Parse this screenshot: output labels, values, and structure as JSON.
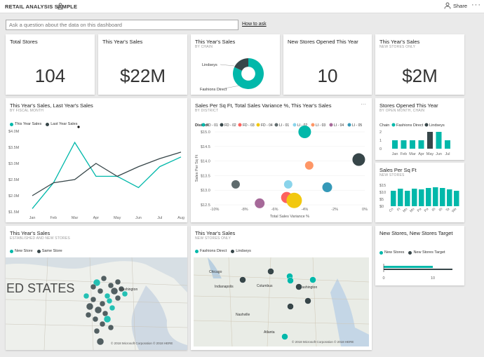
{
  "header": {
    "title": "RETAIL ANALYSIS SAMPLE",
    "share_label": "Share",
    "more_label": "···"
  },
  "qa": {
    "placeholder": "Ask a question about the data on this dashboard",
    "how_to": "How to ask"
  },
  "colors": {
    "teal": "#01b8aa",
    "dark": "#374649",
    "grey": "#808080"
  },
  "tiles": {
    "total_stores": {
      "title": "Total Stores",
      "value": "104"
    },
    "this_year_sales": {
      "title": "This Year's Sales",
      "value": "$22M"
    },
    "sales_by_chain": {
      "title": "This Year's Sales",
      "subtitle": "BY CHAIN",
      "labels": [
        "Lindseys",
        "Fashions Direct"
      ]
    },
    "new_stores_opened": {
      "title": "New Stores Opened This Year",
      "value": "10"
    },
    "new_stores_sales": {
      "title": "This Year's Sales",
      "subtitle": "NEW STORES ONLY",
      "value": "$2M"
    },
    "line_chart": {
      "title": "This Year's Sales, Last Year's Sales",
      "subtitle": "BY FISCAL MONTH"
    },
    "scatter": {
      "title": "Sales Per Sq Ft, Total Sales Variance %, This Year's Sales",
      "subtitle": "BY DISTRICT",
      "more": "···",
      "legend_title": "District"
    },
    "stores_opened": {
      "title": "Stores Opened This Year",
      "subtitle": "BY OPEN MONTH, CHAIN",
      "legend_title": "Chain"
    },
    "sales_sqft": {
      "title": "Sales Per Sq Ft",
      "subtitle": "NEW STORES"
    },
    "map1": {
      "title": "This Year's Sales",
      "subtitle": "ESTABLISHED AND NEW STORES",
      "legend": [
        "New Store",
        "Same Store"
      ],
      "overlay": "ED STATES",
      "city": "Washington",
      "copyright": "© 2018 Microsoft Corporation  © 2018 HERE"
    },
    "map2": {
      "title": "This Year's Sales",
      "subtitle": "NEW STORES ONLY",
      "legend": [
        "Fashions Direct",
        "Lindseys"
      ],
      "cities": [
        "Chicago",
        "Indianapolis",
        "Columbus",
        "Washington",
        "Nashville",
        "Atlanta"
      ],
      "copyright": "© 2018 Microsoft Corporation  © 2018 HERE"
    },
    "target": {
      "title": "New Stores, New Stores Target",
      "legend": [
        "New Stores",
        "New Stores Target"
      ],
      "ticks": [
        "0",
        "10"
      ]
    }
  },
  "chart_data": [
    {
      "type": "pie",
      "name": "This Year's Sales by Chain",
      "categories": [
        "Fashions Direct",
        "Lindseys"
      ],
      "values": [
        82,
        18
      ],
      "colors": [
        "#01b8aa",
        "#374649"
      ]
    },
    {
      "type": "line",
      "title": "This Year's Sales, Last Year's Sales",
      "categories": [
        "Jan",
        "Feb",
        "Mar",
        "Apr",
        "May",
        "Jun",
        "Jul",
        "Aug"
      ],
      "series": [
        {
          "name": "This Year Sales",
          "color": "#01b8aa",
          "values": [
            1.6,
            2.4,
            3.65,
            2.6,
            2.6,
            2.25,
            2.9,
            3.2
          ]
        },
        {
          "name": "Last Year Sales",
          "color": "#374649",
          "values": [
            2.0,
            2.4,
            2.5,
            3.0,
            2.6,
            2.9,
            3.15,
            3.35
          ]
        }
      ],
      "yticks": [
        "$1.5M",
        "$2.0M",
        "$2.5M",
        "$3.0M",
        "$3.5M",
        "$4.0M"
      ],
      "ylim": [
        1.5,
        4.0
      ]
    },
    {
      "type": "scatter",
      "title": "Sales Per Sq Ft, Total Sales Variance %, This Year's Sales",
      "xlabel": "Total Sales Variance %",
      "ylabel": "Sales Per Sq Ft",
      "xlim": [
        -10,
        0
      ],
      "ylim": [
        12.5,
        15.0
      ],
      "xticks": [
        "-10%",
        "-8%",
        "-6%",
        "-4%",
        "-2%",
        "0%"
      ],
      "yticks": [
        "$12.5",
        "$13.0",
        "$13.5",
        "$14.0",
        "$14.5",
        "$15.0"
      ],
      "legend": [
        {
          "name": "FD - 01",
          "color": "#01b8aa"
        },
        {
          "name": "FD - 02",
          "color": "#374649"
        },
        {
          "name": "FD - 03",
          "color": "#fd625e"
        },
        {
          "name": "FD - 04",
          "color": "#f2c80f"
        },
        {
          "name": "LI - 01",
          "color": "#5f6b6d"
        },
        {
          "name": "LI - 02",
          "color": "#8ad4eb"
        },
        {
          "name": "LI - 03",
          "color": "#fe9666"
        },
        {
          "name": "LI - 04",
          "color": "#a66999"
        },
        {
          "name": "LI - 05",
          "color": "#3599b8"
        }
      ],
      "points": [
        {
          "x": -4.0,
          "y": 15.0,
          "r": 9,
          "color": "#01b8aa"
        },
        {
          "x": -0.4,
          "y": 14.05,
          "r": 9,
          "color": "#374649"
        },
        {
          "x": -3.7,
          "y": 13.85,
          "r": 6,
          "color": "#fe9666"
        },
        {
          "x": -8.6,
          "y": 13.2,
          "r": 6,
          "color": "#5f6b6d"
        },
        {
          "x": -5.1,
          "y": 13.2,
          "r": 6,
          "color": "#8ad4eb"
        },
        {
          "x": -2.5,
          "y": 13.1,
          "r": 7,
          "color": "#3599b8"
        },
        {
          "x": -5.2,
          "y": 12.75,
          "r": 8,
          "color": "#fd625e"
        },
        {
          "x": -4.7,
          "y": 12.65,
          "r": 11,
          "color": "#f2c80f"
        },
        {
          "x": -7.0,
          "y": 12.55,
          "r": 7,
          "color": "#a66999"
        }
      ]
    },
    {
      "type": "bar",
      "title": "Stores Opened This Year",
      "categories": [
        "Jan",
        "Feb",
        "Mar",
        "Apr",
        "May",
        "Jun",
        "Jul"
      ],
      "yticks": [
        "0",
        "1",
        "2"
      ],
      "series": [
        {
          "name": "Fashions Direct",
          "color": "#01b8aa",
          "values": [
            1,
            1,
            1,
            1,
            0,
            2,
            1
          ]
        },
        {
          "name": "Lindseys",
          "color": "#374649",
          "values": [
            0,
            0,
            0,
            0,
            2,
            0,
            0
          ]
        }
      ]
    },
    {
      "type": "bar",
      "title": "Sales Per Sq Ft",
      "categories": [
        "Cn",
        "Ft",
        "Mo",
        "Mo",
        "Pa",
        "Pa",
        "Ri",
        "Ri",
        "Ta",
        "We"
      ],
      "yticks": [
        "$0",
        "$5",
        "$10",
        "$15"
      ],
      "values": [
        11,
        12.5,
        11,
        12.5,
        12,
        13,
        13.5,
        13,
        12,
        11
      ],
      "color": "#01b8aa"
    },
    {
      "type": "bar",
      "title": "New Stores, New Stores Target",
      "orientation": "horizontal",
      "xticks": [
        "0",
        "10"
      ],
      "series": [
        {
          "name": "New Stores",
          "color": "#01b8aa",
          "values": [
            10
          ]
        },
        {
          "name": "New Stores Target",
          "color": "#374649",
          "values": [
            14
          ]
        }
      ]
    }
  ]
}
